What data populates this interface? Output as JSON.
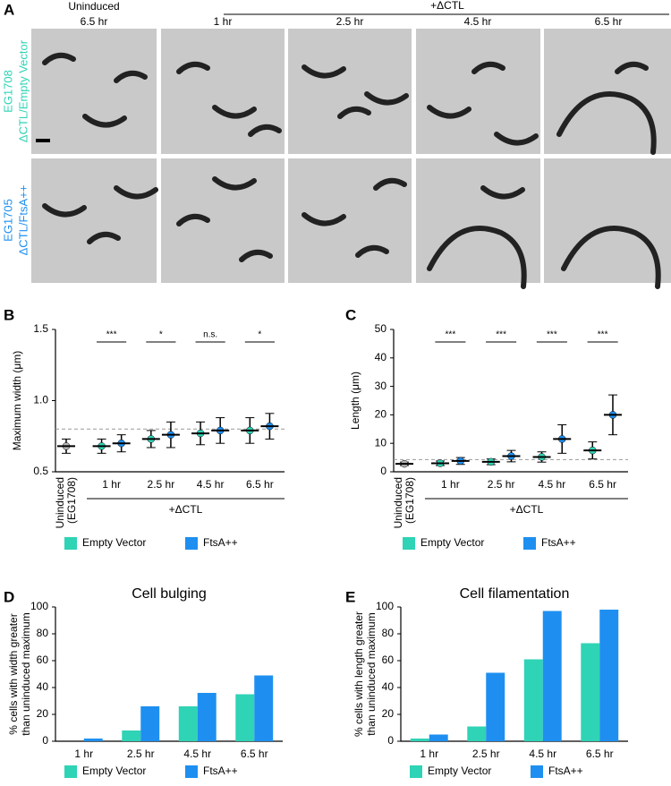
{
  "figure_a": {
    "panel_label": "A",
    "control_label": "Uninduced",
    "control_time": "6.5 hr",
    "group_label": "+ΔCTL",
    "times": [
      "1 hr",
      "2.5 hr",
      "4.5 hr",
      "6.5 hr"
    ],
    "rows": [
      {
        "strain": "EG1708",
        "construct": "ΔCTL/Empty Vector"
      },
      {
        "strain": "EG1705",
        "construct": "ΔCTL/FtsA++"
      }
    ]
  },
  "chart_data": [
    {
      "type": "dot",
      "panel_label": "B",
      "ylabel": "Maximum width (μm)",
      "control_label": [
        "Uninduced",
        "(EG1708)"
      ],
      "control": {
        "value": 0.68,
        "error": 0.05,
        "color": "#b5b5b5"
      },
      "categories": [
        "1 hr",
        "2.5 hr",
        "4.5 hr",
        "6.5 hr"
      ],
      "group_label": "+ΔCTL",
      "series": [
        {
          "name": "Empty Vector",
          "color": "#2fd3b5",
          "values": [
            0.68,
            0.73,
            0.77,
            0.79
          ],
          "errors": [
            0.05,
            0.06,
            0.08,
            0.09
          ]
        },
        {
          "name": "FtsA++",
          "color": "#1e8ff0",
          "values": [
            0.7,
            0.76,
            0.79,
            0.82
          ],
          "errors": [
            0.06,
            0.09,
            0.09,
            0.09
          ]
        }
      ],
      "significance": [
        "***",
        "*",
        "n.s.",
        "*"
      ],
      "threshold": 0.8,
      "ylim": [
        0.5,
        1.5
      ],
      "yticks": [
        0.5,
        {
          "value": 1.0,
          "label": "1.0"
        },
        1.5
      ]
    },
    {
      "type": "dot",
      "panel_label": "C",
      "ylabel": "Length (μm)",
      "control_label": [
        "Uninduced",
        "(EG1708)"
      ],
      "control": {
        "value": 2.8,
        "error": 0.6,
        "color": "#b5b5b5"
      },
      "categories": [
        "1 hr",
        "2.5 hr",
        "4.5 hr",
        "6.5 hr"
      ],
      "group_label": "+ΔCTL",
      "series": [
        {
          "name": "Empty Vector",
          "color": "#2fd3b5",
          "values": [
            3.0,
            3.5,
            5.2,
            7.5
          ],
          "errors": [
            0.8,
            1.0,
            1.8,
            3.0
          ]
        },
        {
          "name": "FtsA++",
          "color": "#1e8ff0",
          "values": [
            3.8,
            5.5,
            11.5,
            20
          ],
          "errors": [
            1.2,
            2.0,
            5,
            7
          ]
        }
      ],
      "significance": [
        "***",
        "***",
        "***",
        "***"
      ],
      "threshold": 4.3,
      "ylim": [
        0,
        50
      ],
      "yticks": [
        0,
        10,
        20,
        30,
        40,
        50
      ]
    },
    {
      "type": "bar",
      "panel_label": "D",
      "title": "Cell bulging",
      "ylabel": [
        "% cells with width greater",
        "than uninduced maximum"
      ],
      "categories": [
        "1 hr",
        "2.5 hr",
        "4.5 hr",
        "6.5 hr"
      ],
      "series": [
        {
          "name": "Empty Vector",
          "color": "#2fd3b5",
          "values": [
            0,
            8,
            26,
            35
          ]
        },
        {
          "name": "FtsA++",
          "color": "#1e8ff0",
          "values": [
            2,
            26,
            36,
            49
          ]
        }
      ],
      "ylim": [
        0,
        100
      ],
      "yticks": [
        0,
        20,
        40,
        60,
        80,
        100
      ]
    },
    {
      "type": "bar",
      "panel_label": "E",
      "title": "Cell filamentation",
      "ylabel": [
        "% cells with length greater",
        "than uninduced maximum"
      ],
      "categories": [
        "1 hr",
        "2.5 hr",
        "4.5 hr",
        "6.5 hr"
      ],
      "series": [
        {
          "name": "Empty Vector",
          "color": "#2fd3b5",
          "values": [
            2,
            11,
            61,
            73
          ]
        },
        {
          "name": "FtsA++",
          "color": "#1e8ff0",
          "values": [
            5,
            51,
            97,
            98
          ]
        }
      ],
      "ylim": [
        0,
        100
      ],
      "yticks": [
        0,
        20,
        40,
        60,
        80,
        100
      ]
    }
  ]
}
